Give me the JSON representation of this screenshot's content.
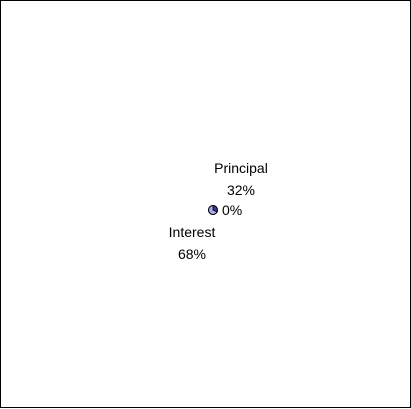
{
  "chart_data": {
    "type": "pie",
    "slices": [
      {
        "label": "Principal",
        "value": 32,
        "percent_label": "32%",
        "color": "#3b3b8c"
      },
      {
        "label": "Interest",
        "value": 68,
        "percent_label": "68%",
        "color": "#a8a8ee"
      },
      {
        "label": "",
        "value": 0,
        "percent_label": "0%",
        "color": "#8a8ad0"
      }
    ],
    "outline_color": "#000000"
  }
}
